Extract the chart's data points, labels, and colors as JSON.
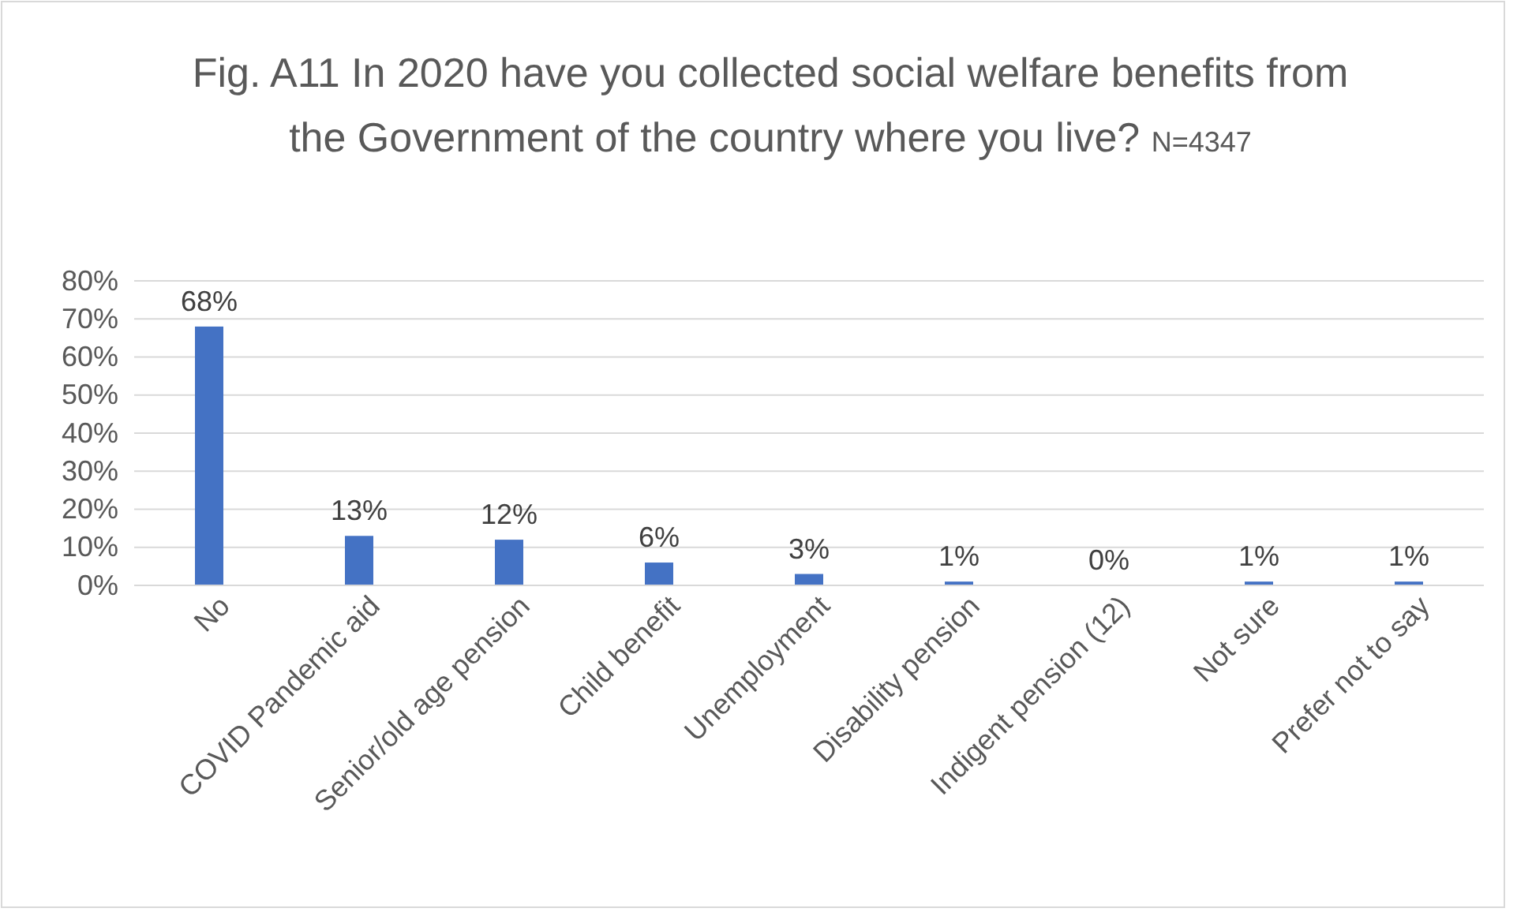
{
  "chart_data": {
    "type": "bar",
    "title": "Fig. A11  In 2020 have you collected social welfare benefits from the Government of the country where you live?",
    "subtitle": "N=4347",
    "categories": [
      "No",
      "COVID Pandemic aid",
      "Senior/old age pension",
      "Child benefit",
      "Unemployment",
      "Disability pension",
      "Indigent pension (12)",
      "Not sure",
      "Prefer not to say"
    ],
    "values": [
      68,
      13,
      12,
      6,
      3,
      1,
      0,
      1,
      1
    ],
    "value_labels": [
      "68%",
      "13%",
      "12%",
      "6%",
      "3%",
      "1%",
      "0%",
      "1%",
      "1%"
    ],
    "color": "#4472c4",
    "ylim": [
      0,
      80
    ],
    "yticks": [
      {
        "value": 0,
        "label": "0%"
      },
      {
        "value": 10,
        "label": "10%"
      },
      {
        "value": 20,
        "label": "20%"
      },
      {
        "value": 30,
        "label": "30%"
      },
      {
        "value": 40,
        "label": "40%"
      },
      {
        "value": 50,
        "label": "50%"
      },
      {
        "value": 60,
        "label": "60%"
      },
      {
        "value": 70,
        "label": "70%"
      },
      {
        "value": 80,
        "label": "80%"
      }
    ],
    "grid": "y"
  }
}
